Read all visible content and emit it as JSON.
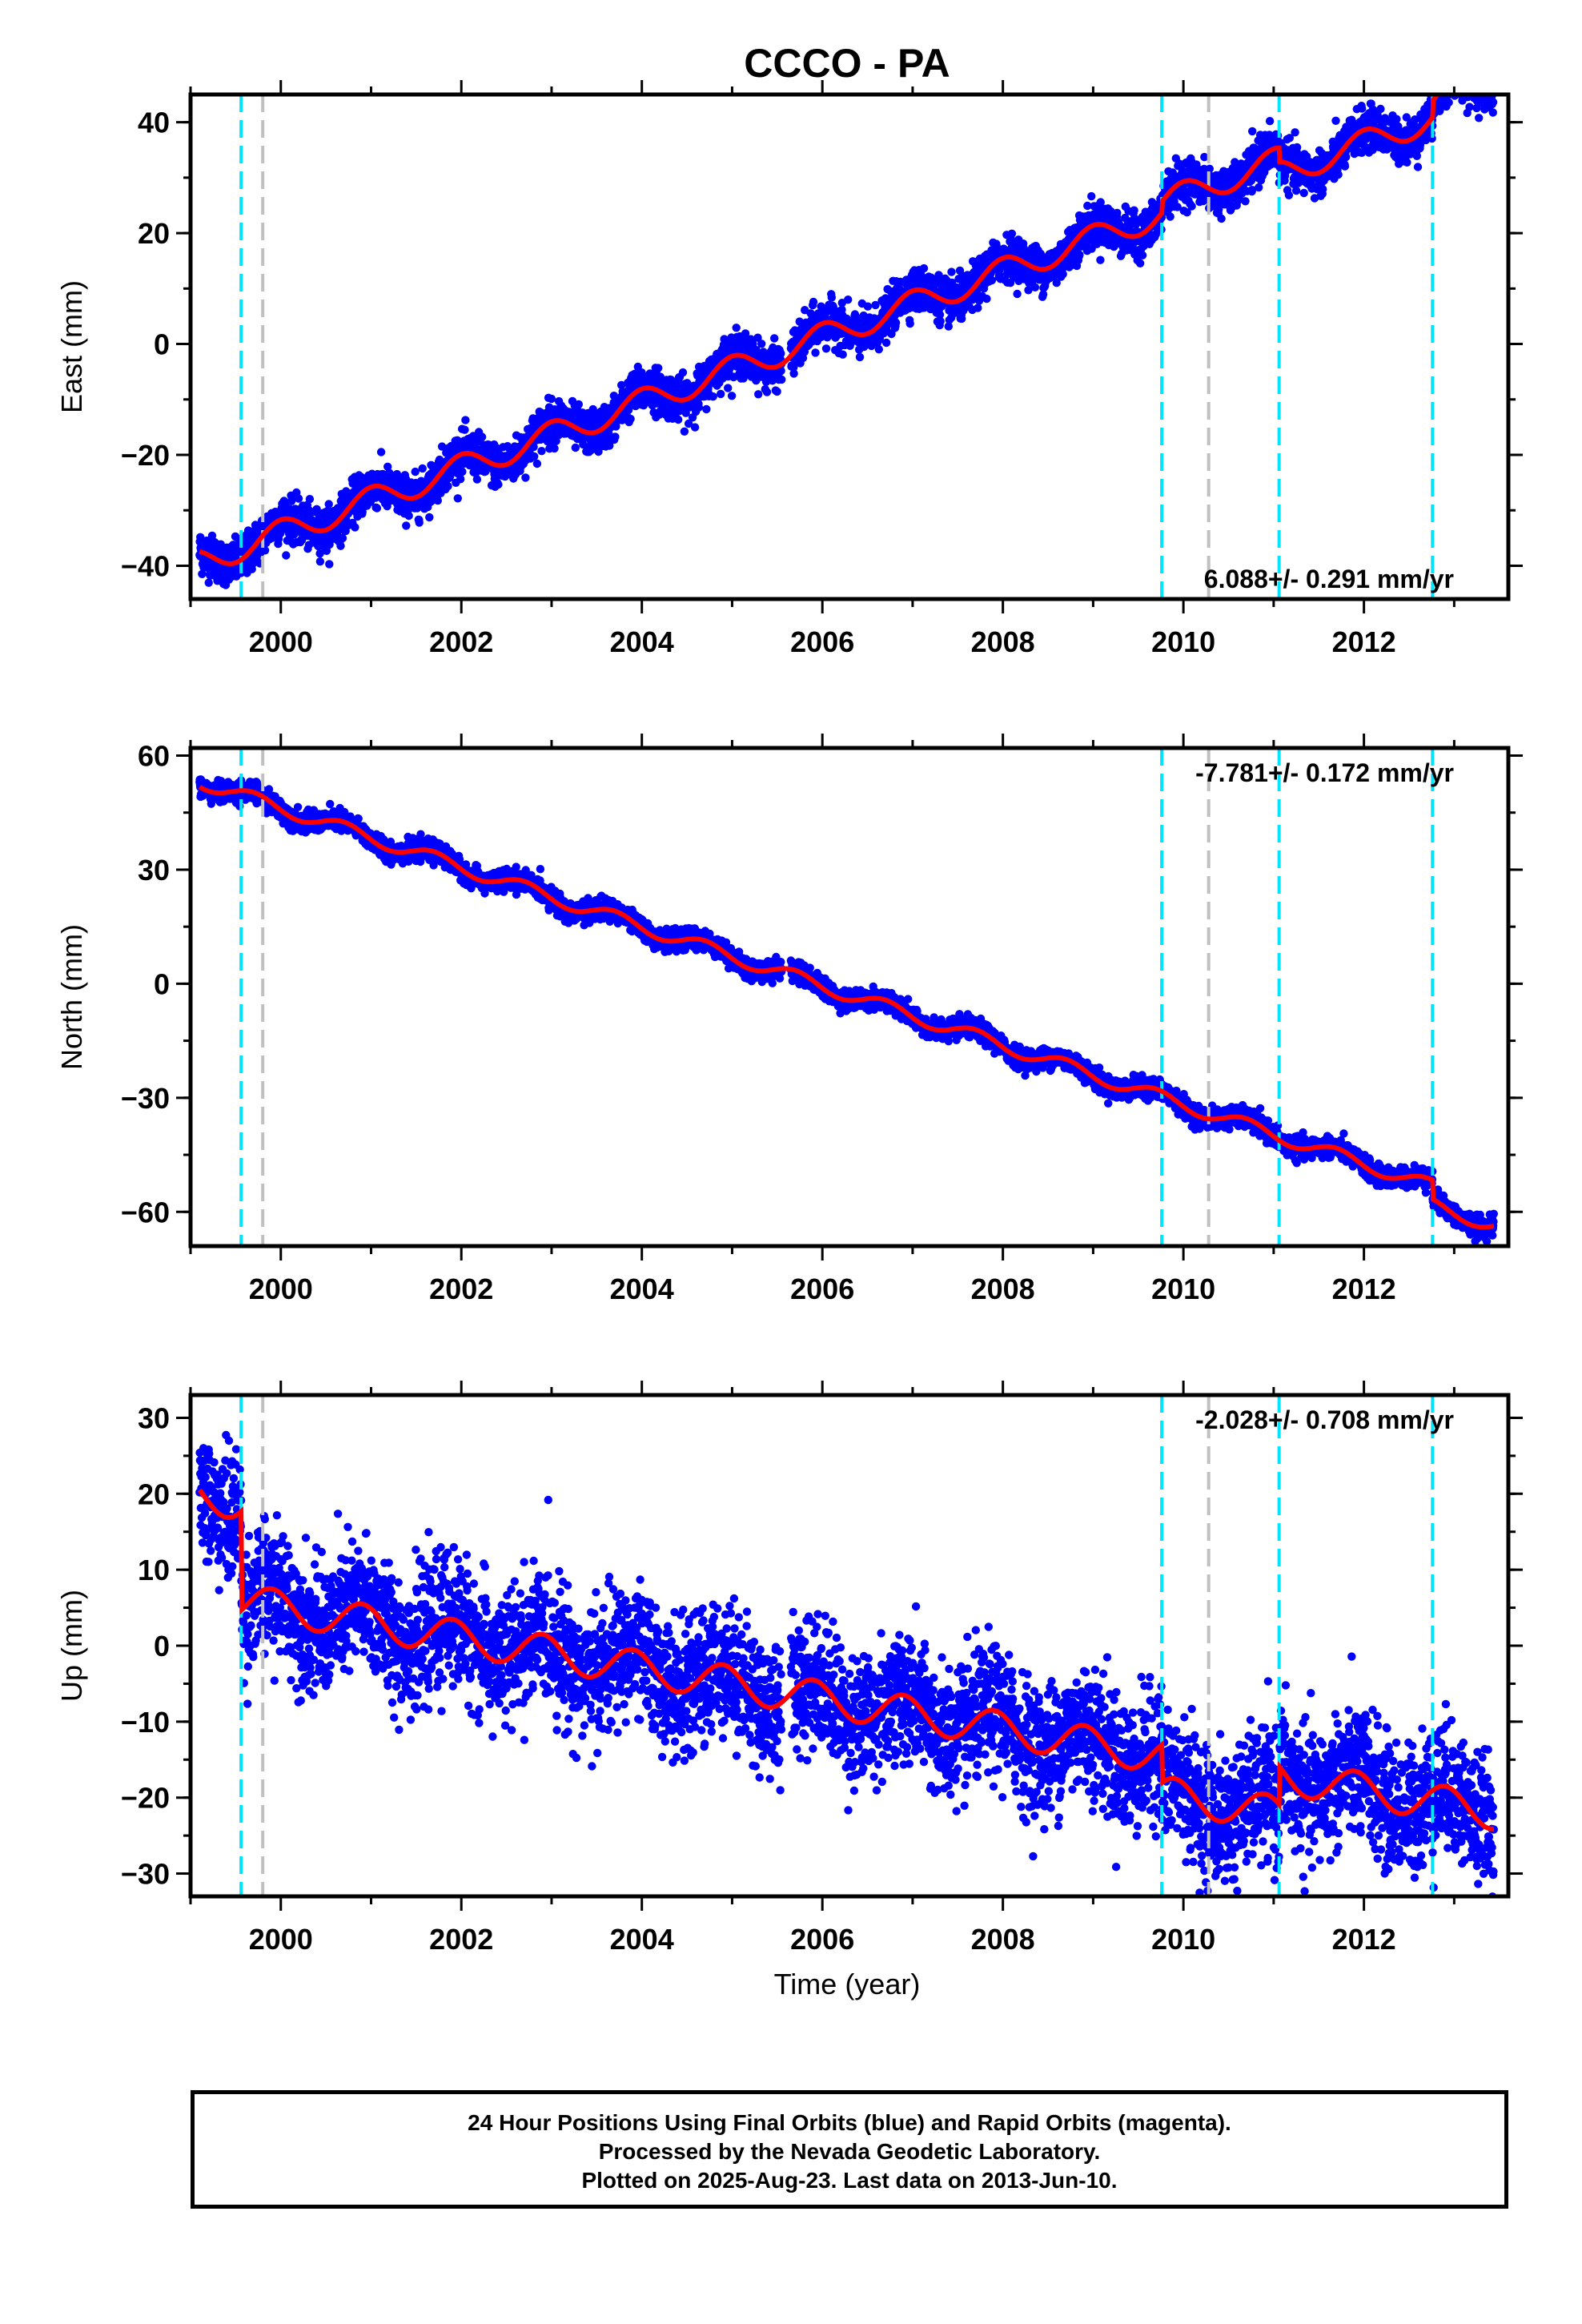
{
  "chart_data": {
    "type": "scatter",
    "title": "CCCO - PA",
    "xlabel": "Time (year)",
    "xlim": [
      1999.0,
      2013.6
    ],
    "xticks": [
      2000,
      2002,
      2004,
      2006,
      2008,
      2010,
      2012
    ],
    "vlines": {
      "cyan": [
        1999.56,
        2009.76,
        2011.06,
        2012.76
      ],
      "gray": [
        1999.8,
        2010.28
      ]
    },
    "panels": [
      {
        "name": "east",
        "ylabel": "East (mm)",
        "ylim": [
          -46,
          45
        ],
        "yticks": [
          -40,
          -20,
          0,
          20,
          40
        ],
        "rate_label": "6.088+/- 0.291 mm/yr",
        "rate_position": "bottom-right",
        "trend": {
          "trend_start": -40,
          "rate": 5.9,
          "amplitude": 2.4,
          "phase": 0.25,
          "offsets": [
            [
              2009.76,
              2.0
            ],
            [
              2011.06,
              -2.5
            ],
            [
              2012.76,
              3.0
            ]
          ]
        },
        "scatter_sd": 1.9,
        "series": [
          {
            "name": "Final Orbits (blue)",
            "color": "#0000ff"
          },
          {
            "name": "Model",
            "color": "#ff0000"
          }
        ]
      },
      {
        "name": "north",
        "ylabel": "North (mm)",
        "ylim": [
          -69,
          62
        ],
        "yticks": [
          -60,
          -30,
          0,
          30,
          60
        ],
        "rate_label": "-7.781+/- 0.172 mm/yr",
        "rate_position": "top-right",
        "trend": {
          "trend_start": 54,
          "rate": -7.8,
          "amplitude": 1.8,
          "phase": 0.55,
          "offsets": [
            [
              2012.76,
              -5.0
            ]
          ]
        },
        "scatter_sd": 1.3,
        "series": [
          {
            "name": "Final Orbits (blue)",
            "color": "#0000ff"
          },
          {
            "name": "Model",
            "color": "#ff0000"
          }
        ]
      },
      {
        "name": "up",
        "ylabel": "Up (mm)",
        "ylim": [
          -33,
          33
        ],
        "yticks": [
          -30,
          -20,
          -10,
          0,
          10,
          20,
          30
        ],
        "rate_label": "-2.028+/- 0.708 mm/yr",
        "rate_position": "top-right",
        "trend": {
          "trend_start": 20,
          "rate": -2.0,
          "amplitude": 2.3,
          "phase": 0.35,
          "offsets": [
            [
              1999.56,
              -13.0
            ],
            [
              2009.76,
              -5.0
            ],
            [
              2011.06,
              5.0
            ]
          ]
        },
        "scatter_sd": 4.2,
        "series": [
          {
            "name": "Final Orbits (blue)",
            "color": "#0000ff"
          },
          {
            "name": "Model",
            "color": "#ff0000"
          }
        ]
      }
    ],
    "colors": {
      "points": "#0000ff",
      "model": "#ff0000",
      "cyan_line": "#00e5ff",
      "gray_line": "#c0c0c0"
    }
  },
  "footer": {
    "line1": "24 Hour Positions Using Final Orbits (blue) and Rapid Orbits (magenta).",
    "line2": "Processed by the Nevada Geodetic Laboratory.",
    "line3": "Plotted on 2025-Aug-23. Last data on 2013-Jun-10."
  }
}
